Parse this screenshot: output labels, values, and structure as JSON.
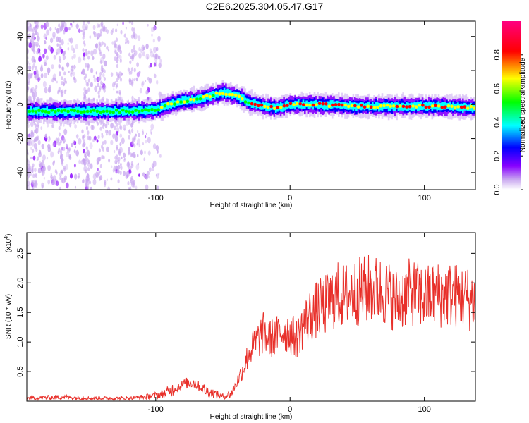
{
  "chart_data": [
    {
      "type": "heatmap",
      "title": "C2E6.2025.304.05.47.G17",
      "xlabel": "Height of straight line (km)",
      "ylabel": "Frequency (Hz)",
      "xlim": [
        -196,
        138
      ],
      "ylim": [
        -50,
        49
      ],
      "x_ticks": [
        -100,
        0,
        100
      ],
      "x_tick_labels": [
        "-100",
        "0",
        "100"
      ],
      "y_ticks": [
        -40,
        -20,
        0,
        20,
        40
      ],
      "y_tick_labels": [
        "-40",
        "-20",
        "0",
        "20",
        "40"
      ],
      "ridge": {
        "x": [
          -196,
          -180,
          -160,
          -140,
          -120,
          -100,
          -90,
          -80,
          -70,
          -60,
          -50,
          -40,
          -30,
          -20,
          -10,
          0,
          20,
          50,
          80,
          110,
          138
        ],
        "freq": [
          -4,
          -4,
          -4,
          -4,
          -4,
          -3,
          0,
          2,
          3,
          5,
          7,
          5,
          1,
          -1,
          -2,
          0,
          0,
          -1,
          -1,
          -1,
          -2
        ]
      },
      "colorbar": {
        "label": "Normalized spectral amplitude",
        "range": [
          0,
          1
        ],
        "ticks": [
          0.0,
          0.2,
          0.4,
          0.6,
          0.8
        ],
        "tick_labels": [
          "0.0",
          "0.2",
          "0.4",
          "0.6",
          "0.8"
        ],
        "colormap": [
          "#ffffff",
          "#c9a8f0",
          "#8800ff",
          "#0000ff",
          "#00ffff",
          "#00ff00",
          "#ffff00",
          "#ff0000",
          "#ff0080"
        ]
      }
    },
    {
      "type": "line",
      "xlabel": "Height of straight line (km)",
      "ylabel": "SNR (10 * v/v)",
      "y_scale_label": "(x10",
      "y_scale_exp": "4",
      "y_scale_close": ")",
      "xlim": [
        -196,
        138
      ],
      "ylim": [
        0,
        2.85
      ],
      "x_ticks": [
        -100,
        0,
        100
      ],
      "x_tick_labels": [
        "-100",
        "0",
        "100"
      ],
      "y_ticks": [
        0.5,
        1.0,
        1.5,
        2.0,
        2.5
      ],
      "y_tick_labels": [
        "0.5",
        "1.0",
        "1.5",
        "2.0",
        "2.5"
      ],
      "series": [
        {
          "name": "SNR",
          "color": "#e8302a",
          "x": [
            -196,
            -170,
            -150,
            -120,
            -105,
            -95,
            -85,
            -78,
            -72,
            -65,
            -60,
            -55,
            -50,
            -44,
            -40,
            -35,
            -30,
            -25,
            -20,
            -15,
            -10,
            -5,
            0,
            5,
            10,
            15,
            20,
            25,
            30,
            35,
            40,
            50,
            60,
            70,
            80,
            90,
            100,
            110,
            120,
            130,
            138
          ],
          "y": [
            0.05,
            0.07,
            0.05,
            0.05,
            0.08,
            0.12,
            0.22,
            0.3,
            0.32,
            0.2,
            0.15,
            0.12,
            0.08,
            0.12,
            0.3,
            0.55,
            0.85,
            1.0,
            1.15,
            1.05,
            1.1,
            1.2,
            1.15,
            1.05,
            1.3,
            1.45,
            1.55,
            1.6,
            1.7,
            1.8,
            1.78,
            1.85,
            1.9,
            1.85,
            1.7,
            1.85,
            1.75,
            1.8,
            1.8,
            1.75,
            1.7
          ]
        }
      ]
    }
  ]
}
